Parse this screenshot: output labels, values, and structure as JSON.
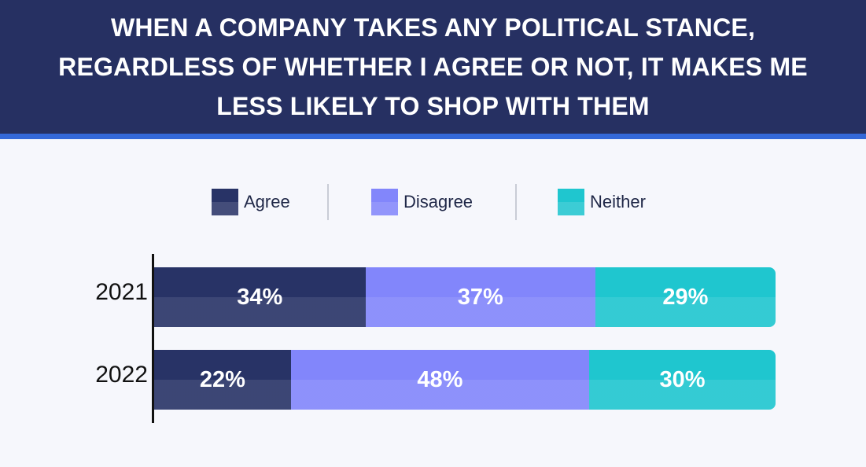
{
  "header": {
    "title": "When a company takes any political stance, regardless of whether I agree or not, it makes me less likely to shop with them"
  },
  "colors": {
    "header_bg": "#263062",
    "header_rule": "#3468d8",
    "agree": "#283366",
    "disagree": "#8286fb",
    "neither": "#1fc6cf"
  },
  "legend": {
    "items": [
      {
        "label": "Agree",
        "color": "#283366"
      },
      {
        "label": "Disagree",
        "color": "#8286fb"
      },
      {
        "label": "Neither",
        "color": "#1fc6cf"
      }
    ]
  },
  "chart_data": {
    "type": "bar",
    "orientation": "horizontal",
    "stacked": true,
    "title": "When a company takes any political stance, regardless of whether I agree or not, it makes me less likely to shop with them",
    "categories": [
      "2021",
      "2022"
    ],
    "series": [
      {
        "name": "Agree",
        "values": [
          34,
          22
        ],
        "labels": [
          "34%",
          "22%"
        ]
      },
      {
        "name": "Disagree",
        "values": [
          37,
          48
        ],
        "labels": [
          "37%",
          "48%"
        ]
      },
      {
        "name": "Neither",
        "values": [
          29,
          30
        ],
        "labels": [
          "29%",
          "30%"
        ]
      }
    ],
    "unit": "%",
    "xlim": [
      0,
      100
    ],
    "legend_position": "top-center",
    "grid": false
  }
}
